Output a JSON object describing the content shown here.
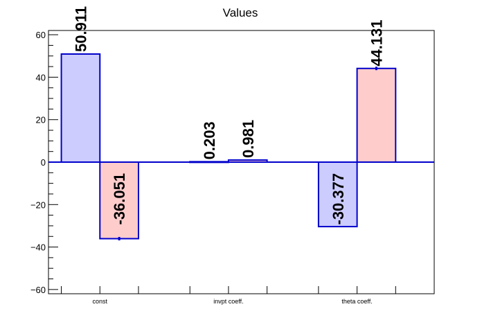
{
  "chart_data": {
    "type": "bar",
    "title": "Values",
    "xlabel": "",
    "ylabel": "",
    "ylim": [
      -62,
      62
    ],
    "yticks": [
      -60,
      -40,
      -20,
      0,
      20,
      40,
      60
    ],
    "y_minor_step": 5,
    "categories": [
      "const",
      "invpt coeff.",
      "theta coeff."
    ],
    "series": [
      {
        "color": "#ccccff",
        "values": [
          50.911,
          0.203,
          -30.377
        ],
        "labels": [
          "50.911",
          "0.203",
          "-30.377"
        ]
      },
      {
        "color": "#ffcccc",
        "values": [
          -36.051,
          0.981,
          44.131
        ],
        "labels": [
          "-36.051",
          "0.981",
          "44.131"
        ]
      }
    ],
    "bar_edge_color": "#0000cc",
    "errors": [
      [
        0,
        0,
        0
      ],
      [
        0.8,
        0,
        0.8
      ]
    ],
    "grid": false,
    "legend": "none"
  }
}
